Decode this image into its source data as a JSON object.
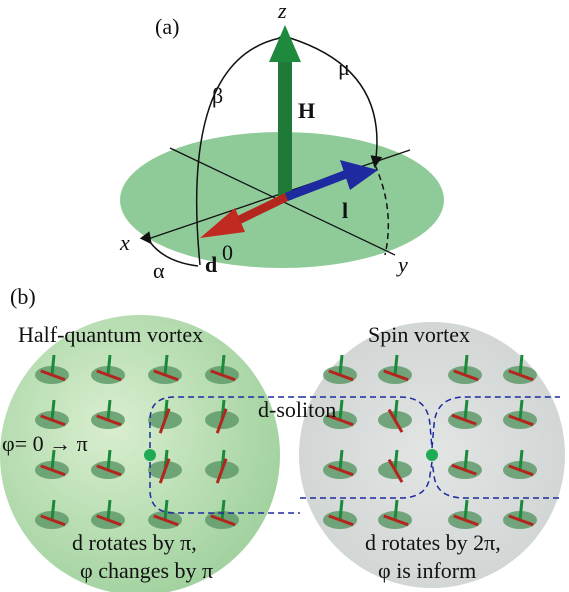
{
  "panel_a": {
    "label": "(a)",
    "axis_z": "z",
    "axis_x": "x",
    "axis_y": "y",
    "angle_mu": "μ",
    "angle_beta": "β",
    "angle_alpha": "α",
    "vector_H": "H",
    "vector_l": "l",
    "vector_d": "d",
    "vector_d_superscript": "0"
  },
  "panel_b": {
    "label": "(b)",
    "soliton": "d-soliton",
    "left": {
      "title": "Half-quantum vortex",
      "phase": "φ= 0 → π",
      "caption_line1": "d rotates by π,",
      "caption_line2": "φ changes by π"
    },
    "right": {
      "title": "Spin vortex",
      "caption_line1": "d rotates by 2π,",
      "caption_line2": "φ is inform"
    }
  }
}
